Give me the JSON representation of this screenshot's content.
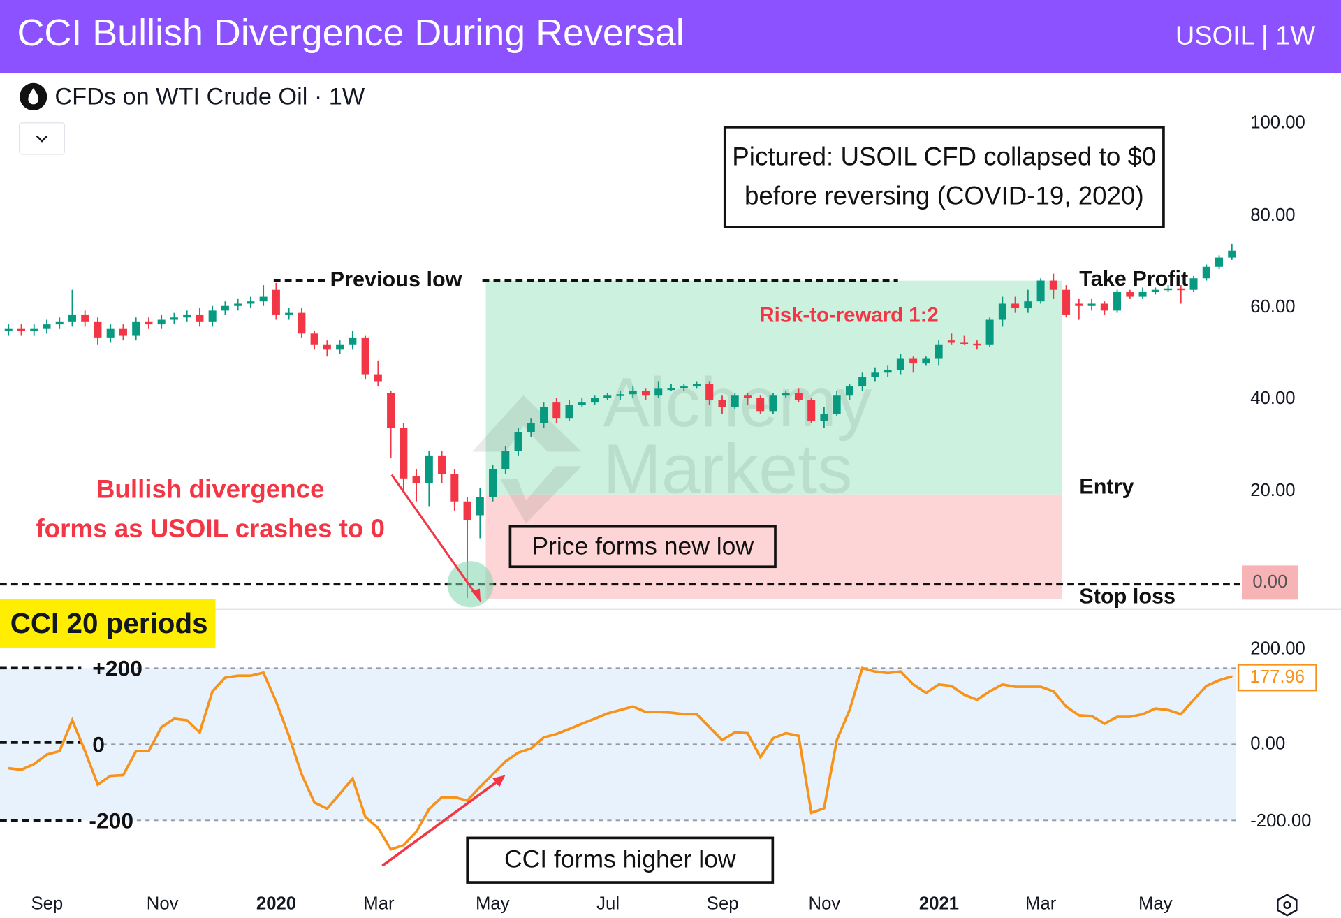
{
  "header": {
    "title": "CCI Bullish Divergence During Reversal",
    "symbol_timeframe": "USOIL | 1W"
  },
  "symbol_bar": {
    "icon": "oil-drop-icon",
    "label": "CFDs on WTI Crude Oil · 1W"
  },
  "annotations": {
    "pictured_line1": "Pictured: USOIL CFD collapsed to $0",
    "pictured_line2": "before reversing (COVID-19, 2020)",
    "previous_low": "Previous low",
    "risk_reward": "Risk-to-reward 1:2",
    "take_profit": "Take Profit",
    "entry": "Entry",
    "stop_loss": "Stop loss",
    "bullish_line1": "Bullish divergence",
    "bullish_line2": "forms as USOIL crashes to 0",
    "price_new_low": "Price forms new low",
    "cci_higher_low": "CCI forms higher low",
    "cci_title": "CCI 20 periods",
    "cci_plus200": "+200",
    "cci_zero": "0",
    "cci_minus200": "-200",
    "watermark": "Alchemy Markets"
  },
  "colors": {
    "header": "#8c52ff",
    "up": "#089981",
    "down": "#f23645",
    "cci_line": "#f7931a",
    "annotation_red": "#f23645",
    "profit_zone": "#ccf1df",
    "loss_zone": "#fdd5d6",
    "cci_band": "#e8f2fc",
    "cci_title_bg": "#ffee00"
  },
  "chart_data": [
    {
      "type": "candlestick",
      "title": "CFDs on WTI Crude Oil · 1W",
      "y_ticks": [
        "100.00",
        "80.00",
        "60.00",
        "40.00",
        "20.00",
        "0.00"
      ],
      "ylim": [
        0,
        100
      ],
      "highlighted_price": "0.00",
      "levels": {
        "previous_low": 64.5,
        "take_profit": 64.5,
        "entry": 19,
        "stop_loss": 0
      },
      "ohlc": [
        [
          55,
          56.5,
          54,
          55.5
        ],
        [
          55.5,
          56.5,
          54,
          55
        ],
        [
          55,
          56.5,
          54,
          55.5
        ],
        [
          55.5,
          57.5,
          54.5,
          56.5
        ],
        [
          56.5,
          58,
          55.5,
          57
        ],
        [
          57,
          64,
          56,
          58.5
        ],
        [
          58.5,
          59.5,
          56,
          57
        ],
        [
          57,
          58,
          52,
          53.5
        ],
        [
          53.5,
          56.5,
          52.5,
          55.5
        ],
        [
          55.5,
          56.5,
          53,
          54
        ],
        [
          54,
          58,
          53,
          57
        ],
        [
          57,
          58,
          55.5,
          56.5
        ],
        [
          56.5,
          58.5,
          55.5,
          57.5
        ],
        [
          57.5,
          59,
          56.5,
          58
        ],
        [
          58,
          59.5,
          57,
          58.5
        ],
        [
          58.5,
          60,
          56,
          57
        ],
        [
          57,
          60.5,
          56,
          59.5
        ],
        [
          59.5,
          61.5,
          58.5,
          60.5
        ],
        [
          60.5,
          62,
          59.5,
          61
        ],
        [
          61,
          62.5,
          60,
          61.5
        ],
        [
          61.5,
          65,
          60.5,
          62.5
        ],
        [
          64,
          65.5,
          57.5,
          58.5
        ],
        [
          58.5,
          60,
          57.5,
          59
        ],
        [
          59,
          60,
          53.5,
          54.5
        ],
        [
          54.5,
          55,
          51,
          52
        ],
        [
          52,
          53,
          49.5,
          51
        ],
        [
          51,
          53,
          50,
          52
        ],
        [
          52,
          55,
          51,
          53.5
        ],
        [
          53.5,
          54,
          44.5,
          45.5
        ],
        [
          45.5,
          48.5,
          43,
          44
        ],
        [
          41.5,
          42,
          27.5,
          34
        ],
        [
          34,
          35,
          20,
          23
        ],
        [
          23.5,
          25,
          18,
          22
        ],
        [
          22,
          29,
          17,
          28
        ],
        [
          28,
          29,
          22,
          24
        ],
        [
          24,
          25,
          16,
          18
        ],
        [
          18,
          19,
          -3,
          14
        ],
        [
          15,
          21,
          10,
          19
        ],
        [
          19,
          26,
          18,
          25
        ],
        [
          25,
          30,
          24,
          29
        ],
        [
          29,
          34,
          28,
          33
        ],
        [
          33,
          36,
          32,
          35
        ],
        [
          35,
          39.5,
          34,
          38.5
        ],
        [
          39.5,
          40.5,
          35,
          36
        ],
        [
          36,
          40,
          35.5,
          39
        ],
        [
          39,
          40.5,
          38.5,
          39.5
        ],
        [
          39.5,
          41,
          39,
          40.5
        ],
        [
          40.5,
          41.5,
          40,
          41
        ],
        [
          41,
          42,
          40,
          41.3
        ],
        [
          41.3,
          43,
          40.5,
          42
        ],
        [
          42,
          42.5,
          40,
          41
        ],
        [
          41,
          44,
          40.5,
          42.5
        ],
        [
          42.5,
          43.5,
          42,
          42.6
        ],
        [
          42.6,
          43.5,
          42,
          43
        ],
        [
          43,
          44,
          42.5,
          43.5
        ],
        [
          43.5,
          44,
          39,
          40
        ],
        [
          40,
          41,
          37,
          38.5
        ],
        [
          38.5,
          41.5,
          38,
          41
        ],
        [
          41,
          41.5,
          39,
          40.5
        ],
        [
          40.5,
          41,
          37,
          37.5
        ],
        [
          37.5,
          41.5,
          37,
          41
        ],
        [
          41,
          42,
          40.5,
          41.5
        ],
        [
          41.5,
          42.5,
          39.5,
          40
        ],
        [
          40,
          40.5,
          35,
          35.5
        ],
        [
          35.5,
          38.5,
          34,
          37
        ],
        [
          37,
          42,
          36.5,
          41
        ],
        [
          41,
          43.5,
          40,
          43
        ],
        [
          43,
          46,
          42,
          45
        ],
        [
          45,
          47,
          44,
          46
        ],
        [
          46,
          47.5,
          45,
          46.5
        ],
        [
          46.5,
          50,
          45.5,
          49
        ],
        [
          49,
          49.5,
          46,
          48
        ],
        [
          48,
          49.5,
          47.5,
          49
        ],
        [
          49,
          53,
          47.5,
          52
        ],
        [
          53,
          54.5,
          52,
          52.5
        ],
        [
          52.5,
          54,
          52,
          52.3
        ],
        [
          52.3,
          53,
          51,
          52
        ],
        [
          52,
          58,
          51.5,
          57.5
        ],
        [
          57.5,
          62.5,
          56,
          61
        ],
        [
          61,
          62.5,
          59,
          60
        ],
        [
          60,
          64,
          59,
          61.5
        ],
        [
          61.5,
          66.5,
          61,
          66
        ],
        [
          66,
          67.5,
          62,
          64
        ],
        [
          64,
          65,
          58,
          58.5
        ],
        [
          61,
          62,
          57.5,
          60.5
        ],
        [
          60.5,
          62,
          59.5,
          61
        ],
        [
          61,
          61.5,
          58.5,
          59.5
        ],
        [
          59.5,
          64,
          59,
          63.5
        ],
        [
          63.5,
          64,
          62,
          62.5
        ],
        [
          62.5,
          64.5,
          62,
          63.5
        ],
        [
          63.5,
          64.5,
          63,
          64
        ],
        [
          64,
          65,
          63.5,
          64.3
        ],
        [
          64.3,
          65,
          61,
          64
        ],
        [
          64,
          67,
          63.5,
          66.5
        ],
        [
          66.5,
          69.5,
          66,
          69
        ],
        [
          69,
          71.5,
          68.5,
          71
        ],
        [
          71,
          74,
          70.5,
          72.5
        ]
      ]
    },
    {
      "type": "line",
      "title": "CCI 20 periods",
      "ylim": [
        -200,
        200
      ],
      "y_ticks": [
        "200.00",
        "0.00",
        "-200.00"
      ],
      "last_value": "177.96",
      "series": [
        {
          "values": [
            -63,
            -67,
            -52,
            -27,
            -18,
            63,
            -18,
            -106,
            -83,
            -81,
            -18,
            -18,
            45,
            67,
            63,
            31,
            139,
            175,
            180,
            180,
            188,
            112,
            22,
            -79,
            -153,
            -169,
            -130,
            -90,
            -191,
            -220,
            -276,
            -265,
            -230,
            -170,
            -139,
            -139,
            -148,
            -112,
            -79,
            -45,
            -22,
            -11,
            18,
            27,
            40,
            54,
            67,
            81,
            90,
            99,
            85,
            85,
            83,
            79,
            79,
            45,
            11,
            31,
            29,
            -34,
            16,
            29,
            22,
            -180,
            -168,
            11,
            90,
            200,
            191,
            187,
            191,
            157,
            135,
            157,
            153,
            130,
            117,
            139,
            157,
            151,
            151,
            151,
            139,
            99,
            76,
            74,
            54,
            72,
            72,
            79,
            94,
            90,
            79,
            117,
            153,
            168,
            178
          ]
        }
      ]
    }
  ],
  "x_axis": {
    "ticks": [
      {
        "label": "Sep",
        "bold": false
      },
      {
        "label": "Nov",
        "bold": false
      },
      {
        "label": "2020",
        "bold": true
      },
      {
        "label": "Mar",
        "bold": false
      },
      {
        "label": "May",
        "bold": false
      },
      {
        "label": "Jul",
        "bold": false
      },
      {
        "label": "Sep",
        "bold": false
      },
      {
        "label": "Nov",
        "bold": false
      },
      {
        "label": "2021",
        "bold": true
      },
      {
        "label": "Mar",
        "bold": false
      },
      {
        "label": "May",
        "bold": false
      }
    ]
  },
  "controls": {
    "settings_icon": "hexagon-settings-icon",
    "dropdown_icon": "chevron-down-icon"
  }
}
